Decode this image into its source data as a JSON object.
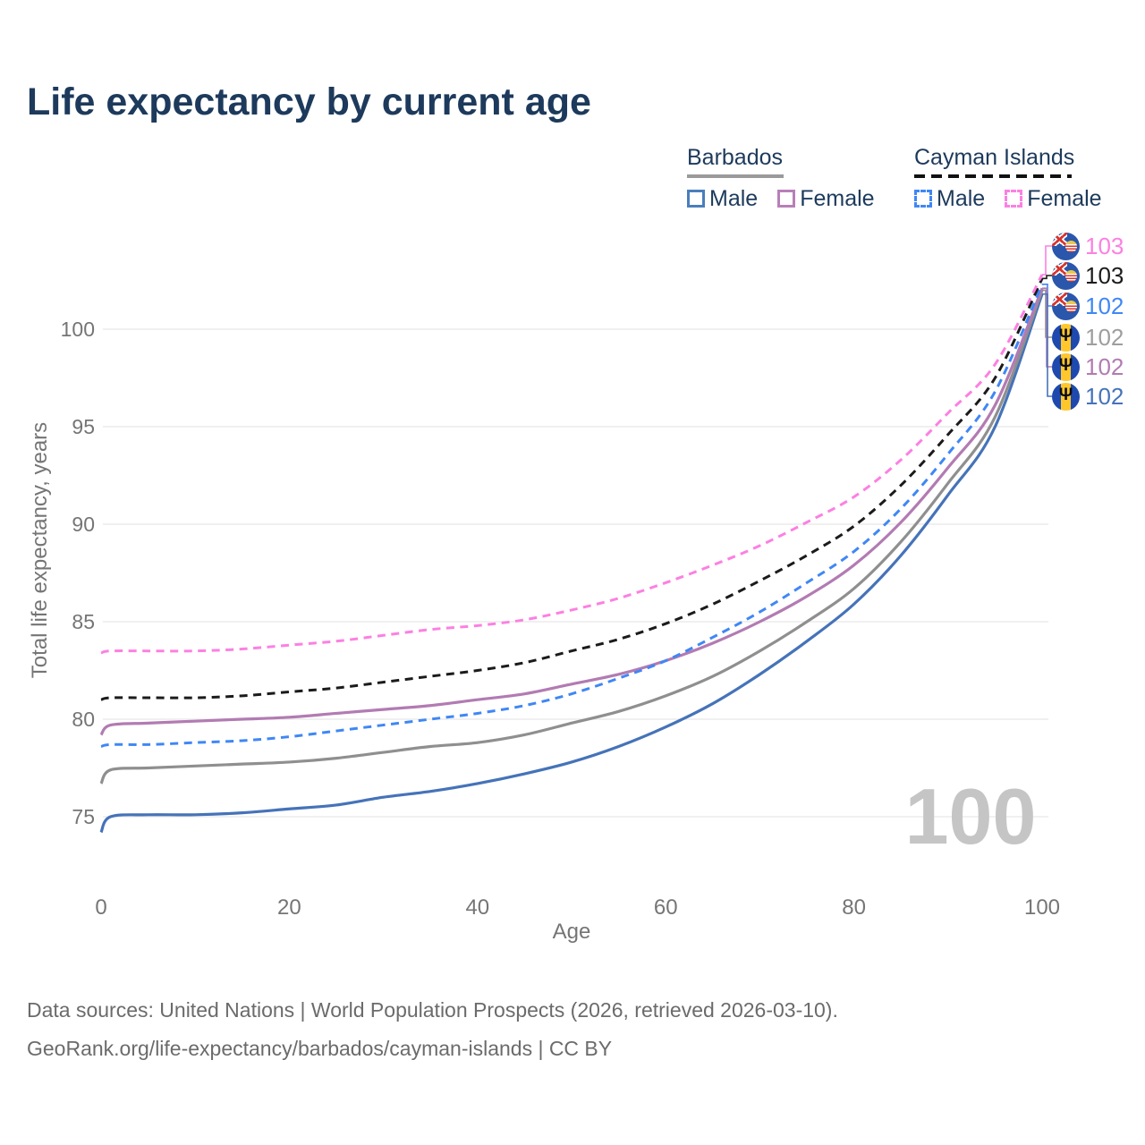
{
  "title": "Life expectancy by current age",
  "legend": {
    "groups": [
      {
        "label": "Barbados",
        "style": "solid",
        "items": [
          {
            "label": "Male"
          },
          {
            "label": "Female"
          }
        ]
      },
      {
        "label": "Cayman Islands",
        "style": "dashed",
        "items": [
          {
            "label": "Male"
          },
          {
            "label": "Female"
          }
        ]
      }
    ]
  },
  "watermark": "100",
  "footer": {
    "line1": "Data sources: United Nations | World Population Prospects (2026, retrieved 2026-03-10).",
    "line2": "GeoRank.org/life-expectancy/barbados/cayman-islands | CC BY"
  },
  "colors": {
    "title_text": "#1d3a5c",
    "axis_text": "#757575",
    "gridline": "#e8e8e8",
    "watermark": "#c5c5c5",
    "barbados_male": "#4573b9",
    "barbados_female": "#b27bb2",
    "barbados_total": "#8f8f8f",
    "cayman_male": "#3f87f5",
    "cayman_female": "#fc80e2",
    "cayman_total": "#1b1b1b"
  },
  "chart_data": {
    "type": "line",
    "title": "Life expectancy by current age",
    "xlabel": "Age",
    "ylabel": "Total life expectancy, years",
    "xlim": [
      0,
      100
    ],
    "ylim": [
      74,
      103.5
    ],
    "xticks": [
      0,
      20,
      40,
      60,
      80,
      100
    ],
    "yticks": [
      75,
      80,
      85,
      90,
      95,
      100
    ],
    "grid": "horizontal",
    "legend_position": "top-right",
    "x": [
      0,
      1,
      5,
      10,
      15,
      20,
      25,
      30,
      35,
      40,
      45,
      50,
      55,
      60,
      65,
      70,
      75,
      80,
      85,
      90,
      95,
      100
    ],
    "series": [
      {
        "name": "Cayman Islands Female",
        "country": "Cayman Islands",
        "sex": "Female",
        "color": "#fc80e2",
        "dash": true,
        "end_label": "103",
        "flag": "cayman",
        "values": [
          83.4,
          83.5,
          83.5,
          83.5,
          83.6,
          83.8,
          84.0,
          84.3,
          84.6,
          84.8,
          85.1,
          85.6,
          86.2,
          87.0,
          87.9,
          88.9,
          90.1,
          91.4,
          93.3,
          95.7,
          98.2,
          102.8
        ]
      },
      {
        "name": "Cayman Islands Total",
        "country": "Cayman Islands",
        "sex": "Both",
        "color": "#1b1b1b",
        "dash": true,
        "end_label": "103",
        "flag": "cayman",
        "values": [
          81.0,
          81.1,
          81.1,
          81.1,
          81.2,
          81.4,
          81.6,
          81.9,
          82.2,
          82.5,
          82.9,
          83.5,
          84.1,
          84.9,
          85.9,
          87.1,
          88.4,
          89.9,
          92.0,
          94.6,
          97.5,
          102.6
        ]
      },
      {
        "name": "Cayman Islands Male",
        "country": "Cayman Islands",
        "sex": "Male",
        "color": "#3f87f5",
        "dash": true,
        "end_label": "102",
        "flag": "cayman",
        "values": [
          78.6,
          78.7,
          78.7,
          78.8,
          78.9,
          79.1,
          79.4,
          79.7,
          80.0,
          80.3,
          80.7,
          81.3,
          82.1,
          83.0,
          84.2,
          85.5,
          87.0,
          88.6,
          90.8,
          93.6,
          96.8,
          102.3
        ]
      },
      {
        "name": "Barbados Total",
        "country": "Barbados",
        "sex": "Both",
        "color": "#8f8f8f",
        "dash": false,
        "end_label": "102",
        "flag": "barbados",
        "values": [
          76.7,
          77.4,
          77.5,
          77.6,
          77.7,
          77.8,
          78.0,
          78.3,
          78.6,
          78.8,
          79.2,
          79.8,
          80.4,
          81.2,
          82.2,
          83.5,
          85.0,
          86.7,
          89.1,
          92.1,
          95.5,
          102.0
        ]
      },
      {
        "name": "Barbados Female",
        "country": "Barbados",
        "sex": "Female",
        "color": "#b27bb2",
        "dash": false,
        "end_label": "102",
        "flag": "barbados",
        "values": [
          79.2,
          79.7,
          79.8,
          79.9,
          80.0,
          80.1,
          80.3,
          80.5,
          80.7,
          81.0,
          81.3,
          81.8,
          82.3,
          83.0,
          83.9,
          85.0,
          86.3,
          87.9,
          90.1,
          92.9,
          96.1,
          102.1
        ]
      },
      {
        "name": "Barbados Male",
        "country": "Barbados",
        "sex": "Male",
        "color": "#4573b9",
        "dash": false,
        "end_label": "102",
        "flag": "barbados",
        "values": [
          74.2,
          75.0,
          75.1,
          75.1,
          75.2,
          75.4,
          75.6,
          76.0,
          76.3,
          76.7,
          77.2,
          77.8,
          78.6,
          79.6,
          80.8,
          82.3,
          84.0,
          85.9,
          88.4,
          91.5,
          95.0,
          101.8
        ]
      }
    ],
    "label_rows_y": [
      275,
      308,
      342,
      377,
      410,
      443
    ]
  }
}
